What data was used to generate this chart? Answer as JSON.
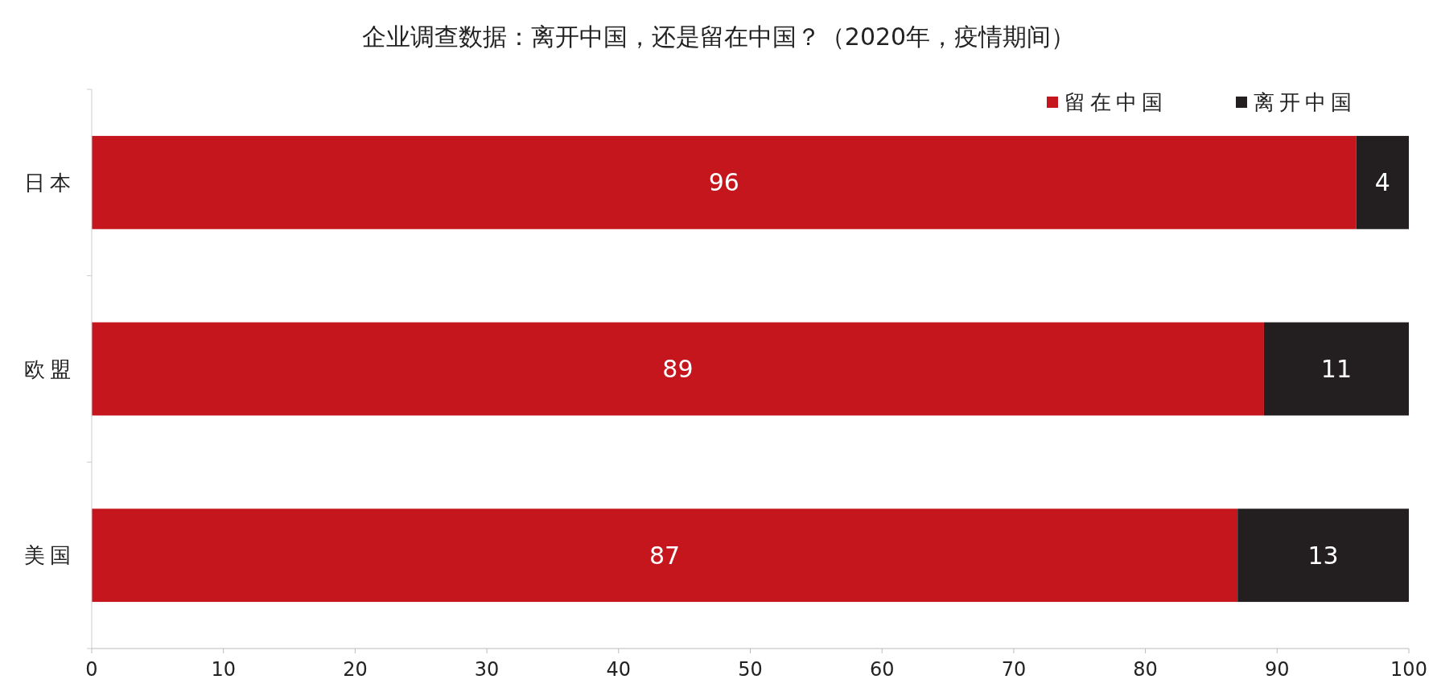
{
  "chart_data": {
    "type": "bar",
    "title": "企业调查数据：离开中国，还是留在中国？（2020年，疫情期间）",
    "orientation": "horizontal",
    "stacked": true,
    "categories": [
      "日本",
      "欧盟",
      "美国"
    ],
    "series": [
      {
        "name": "留在中国",
        "color": "#c4161c",
        "values": [
          96,
          89,
          87
        ]
      },
      {
        "name": "离开中国",
        "color": "#231f20",
        "values": [
          4,
          11,
          13
        ]
      }
    ],
    "xlim": [
      0,
      100
    ],
    "xticks": [
      0,
      10,
      20,
      30,
      40,
      50,
      60,
      70,
      80,
      90,
      100
    ],
    "data_labels": true,
    "legend": "top right",
    "grid": false
  }
}
